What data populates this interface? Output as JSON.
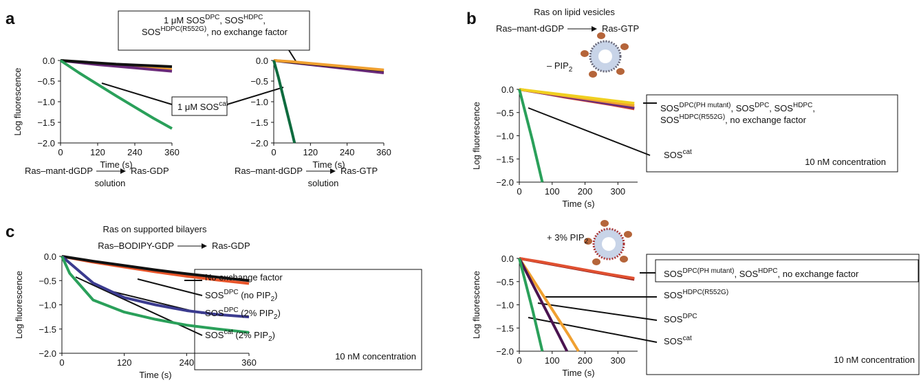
{
  "chart_data": [
    {
      "type": "line",
      "panel": "a",
      "xlabel": "Time (s)",
      "ylabel": "Log fluorescence",
      "xlim": [
        0,
        360
      ],
      "xticks": [
        0,
        120,
        240,
        360
      ],
      "ylim": [
        -2,
        0
      ],
      "yticks": [
        {
          "value": 0,
          "label": "0.0"
        },
        {
          "value": -0.5,
          "label": "−0.5"
        },
        {
          "value": -1,
          "label": "−1.0"
        },
        {
          "value": -1.5,
          "label": "−1.5"
        },
        {
          "value": -2,
          "label": "−2.0"
        }
      ],
      "reaction": {
        "from": "Ras–mant-dGDP",
        "to": "Ras-GDP",
        "medium": "solution"
      },
      "annotations": [
        [
          [
            {
              "t": "1 μM SOS"
            },
            {
              "sup": "DPC"
            },
            {
              "t": ", SOS"
            },
            {
              "sup": "HDPC"
            },
            {
              "t": ","
            }
          ],
          [
            {
              "t": "SOS"
            },
            {
              "sup": "HDPC(R552G)"
            },
            {
              "t": ", no exchange factor"
            }
          ]
        ],
        [
          [
            {
              "t": "1 μM SOS"
            },
            {
              "sup": "cat"
            }
          ]
        ]
      ],
      "series": [
        {
          "color": "#f0a030",
          "x": [
            0,
            60,
            120,
            180,
            240,
            300,
            360
          ],
          "values": [
            0,
            -0.04,
            -0.08,
            -0.12,
            -0.16,
            -0.19,
            -0.22
          ]
        },
        {
          "color": "#6a2a7a",
          "x": [
            0,
            60,
            120,
            180,
            240,
            300,
            360
          ],
          "values": [
            0,
            -0.05,
            -0.1,
            -0.14,
            -0.18,
            -0.22,
            -0.26
          ]
        },
        {
          "color": "#111111",
          "x": [
            0,
            60,
            120,
            180,
            240,
            300,
            360
          ],
          "values": [
            0,
            -0.03,
            -0.06,
            -0.09,
            -0.11,
            -0.13,
            -0.15
          ]
        },
        {
          "color": "#2aa05a",
          "x": [
            0,
            60,
            120,
            180,
            240,
            300,
            360
          ],
          "values": [
            0,
            -0.3,
            -0.58,
            -0.86,
            -1.13,
            -1.4,
            -1.65
          ]
        }
      ]
    },
    {
      "type": "line",
      "xlabel": "Time (s)",
      "xlim": [
        0,
        360
      ],
      "xticks": [
        0,
        120,
        240,
        360
      ],
      "ylim": [
        -2,
        0
      ],
      "yticks": [
        {
          "value": 0,
          "label": "0.0"
        },
        {
          "value": -0.5,
          "label": "−0.5"
        },
        {
          "value": -1,
          "label": "−1.0"
        },
        {
          "value": -1.5,
          "label": "−1.5"
        },
        {
          "value": -2,
          "label": "−2.0"
        }
      ],
      "reaction": {
        "from": "Ras–mant-dGDP",
        "to": "Ras-GTP",
        "medium": "solution"
      },
      "series": [
        {
          "color": "#6a2a7a",
          "x": [
            0,
            60,
            120,
            180,
            240,
            300,
            360
          ],
          "values": [
            0,
            -0.05,
            -0.1,
            -0.15,
            -0.2,
            -0.25,
            -0.3
          ]
        },
        {
          "color": "#111111",
          "x": [
            0,
            60,
            120,
            180,
            240,
            300,
            360
          ],
          "values": [
            0,
            -0.04,
            -0.08,
            -0.12,
            -0.16,
            -0.2,
            -0.24
          ]
        },
        {
          "color": "#f0a030",
          "x": [
            0,
            60,
            120,
            180,
            240,
            300,
            360
          ],
          "values": [
            0,
            -0.03,
            -0.07,
            -0.11,
            -0.15,
            -0.19,
            -0.23
          ]
        },
        {
          "color": "#0f6b3e",
          "x": [
            0,
            15,
            30,
            45,
            60,
            68
          ],
          "values": [
            0,
            -0.4,
            -0.85,
            -1.3,
            -1.75,
            -2
          ]
        }
      ]
    },
    {
      "type": "line",
      "panel": "b",
      "title": "Ras on lipid vesicles",
      "xlabel": "Time (s)",
      "ylabel": "Log fluorescence",
      "xlim": [
        0,
        360
      ],
      "xticks": [
        0,
        100,
        200,
        300
      ],
      "ylim": [
        -2,
        0
      ],
      "yticks": [
        {
          "value": 0,
          "label": "0.0"
        },
        {
          "value": -0.5,
          "label": "−0.5"
        },
        {
          "value": -1,
          "label": "−1.0"
        },
        {
          "value": -1.5,
          "label": "−1.5"
        },
        {
          "value": -2,
          "label": "−2.0"
        }
      ],
      "reaction": {
        "from": "Ras–mant-dGDP",
        "to": "Ras-GTP"
      },
      "annotations": [
        [
          [
            {
              "t": "SOS"
            },
            {
              "sup": "DPC(PH mutant)"
            },
            {
              "t": ", SOS"
            },
            {
              "sup": "DPC"
            },
            {
              "t": ", SOS"
            },
            {
              "sup": "HDPC"
            },
            {
              "t": ","
            }
          ],
          [
            {
              "t": "SOS"
            },
            {
              "sup": "HDPC(R552G)"
            },
            {
              "t": ", no exchange factor"
            }
          ]
        ],
        [
          [
            {
              "t": "SOS"
            },
            {
              "sup": "cat"
            }
          ]
        ],
        [
          [
            {
              "t": "10 nM concentration"
            }
          ]
        ],
        [
          [
            {
              "t": "– PIP"
            },
            {
              "sub": "2"
            }
          ]
        ]
      ],
      "series": [
        {
          "color": "#e05030",
          "x": [
            0,
            70,
            140,
            210,
            280,
            350
          ],
          "values": [
            0,
            -0.08,
            -0.17,
            -0.25,
            -0.33,
            -0.42
          ]
        },
        {
          "color": "#6a2a7a",
          "x": [
            0,
            70,
            140,
            210,
            280,
            350
          ],
          "values": [
            0,
            -0.08,
            -0.16,
            -0.24,
            -0.32,
            -0.4
          ]
        },
        {
          "color": "#f0a030",
          "x": [
            0,
            70,
            140,
            210,
            280,
            350
          ],
          "values": [
            0,
            -0.07,
            -0.14,
            -0.21,
            -0.28,
            -0.35
          ]
        },
        {
          "color": "#f0d020",
          "x": [
            0,
            70,
            140,
            210,
            280,
            350
          ],
          "values": [
            0,
            -0.06,
            -0.12,
            -0.18,
            -0.24,
            -0.3
          ]
        },
        {
          "color": "#2aa05a",
          "x": [
            0,
            20,
            40,
            60,
            70
          ],
          "values": [
            0,
            -0.55,
            -1.1,
            -1.7,
            -2
          ]
        }
      ]
    },
    {
      "type": "line",
      "xlabel": "Time (s)",
      "ylabel": "Log fluorescence",
      "xlim": [
        0,
        360
      ],
      "xticks": [
        0,
        100,
        200,
        300
      ],
      "ylim": [
        -2,
        0
      ],
      "yticks": [
        {
          "value": 0,
          "label": "0.0"
        },
        {
          "value": -0.5,
          "label": "−0.5"
        },
        {
          "value": -1,
          "label": "−1.0"
        },
        {
          "value": -1.5,
          "label": "−1.5"
        },
        {
          "value": -2,
          "label": "−2.0"
        }
      ],
      "annotations": [
        [
          [
            {
              "t": "SOS"
            },
            {
              "sup": "DPC(PH mutant)"
            },
            {
              "t": ", SOS"
            },
            {
              "sup": "HDPC"
            },
            {
              "t": ", no exchange factor"
            }
          ]
        ],
        [
          [
            {
              "t": "SOS"
            },
            {
              "sup": "HDPC(R552G)"
            }
          ]
        ],
        [
          [
            {
              "t": "SOS"
            },
            {
              "sup": "DPC"
            }
          ]
        ],
        [
          [
            {
              "t": "SOS"
            },
            {
              "sup": "cat"
            }
          ]
        ],
        [
          [
            {
              "t": "10 nM concentration"
            }
          ]
        ],
        [
          [
            {
              "t": "+ 3% PIP"
            },
            {
              "sub": "2"
            }
          ]
        ]
      ],
      "series": [
        {
          "color": "#8b1a1a",
          "x": [
            0,
            70,
            140,
            210,
            280,
            350
          ],
          "values": [
            0,
            -0.09,
            -0.18,
            -0.27,
            -0.36,
            -0.45
          ]
        },
        {
          "color": "#e05030",
          "x": [
            0,
            70,
            140,
            210,
            280,
            350
          ],
          "values": [
            0,
            -0.08,
            -0.17,
            -0.26,
            -0.35,
            -0.43
          ]
        },
        {
          "color": "#f0a030",
          "x": [
            0,
            50,
            100,
            150,
            180
          ],
          "values": [
            0,
            -0.55,
            -1.1,
            -1.65,
            -2
          ]
        },
        {
          "color": "#4a1450",
          "x": [
            0,
            40,
            80,
            120,
            145
          ],
          "values": [
            0,
            -0.55,
            -1.1,
            -1.65,
            -2
          ]
        },
        {
          "color": "#2aa05a",
          "x": [
            0,
            20,
            40,
            60,
            70
          ],
          "values": [
            0,
            -0.55,
            -1.1,
            -1.7,
            -2
          ]
        }
      ]
    },
    {
      "type": "line",
      "panel": "c",
      "title": "Ras on supported bilayers",
      "xlabel": "Time (s)",
      "ylabel": "Log fluorescence",
      "xlim": [
        0,
        360
      ],
      "xticks": [
        0,
        120,
        240,
        360
      ],
      "ylim": [
        -2,
        0
      ],
      "yticks": [
        {
          "value": 0,
          "label": "0.0"
        },
        {
          "value": -0.5,
          "label": "−0.5"
        },
        {
          "value": -1,
          "label": "−1.0"
        },
        {
          "value": -1.5,
          "label": "−1.5"
        },
        {
          "value": -2,
          "label": "−2.0"
        }
      ],
      "reaction": {
        "from": "Ras–BODIPY-GDP",
        "to": "Ras-GDP"
      },
      "annotations": [
        [
          [
            {
              "t": "No exchange factor"
            }
          ]
        ],
        [
          [
            {
              "t": "SOS"
            },
            {
              "sup": "DPC"
            },
            {
              "t": " (no PIP"
            },
            {
              "sub": "2"
            },
            {
              "t": ")"
            }
          ]
        ],
        [
          [
            {
              "t": "SOS"
            },
            {
              "sup": "DPC"
            },
            {
              "t": " (2% PIP"
            },
            {
              "sub": "2"
            },
            {
              "t": ")"
            }
          ]
        ],
        [
          [
            {
              "t": "SOS"
            },
            {
              "sup": "cat"
            },
            {
              "t": " (2% PIP"
            },
            {
              "sub": "2"
            },
            {
              "t": ")"
            }
          ]
        ],
        [
          [
            {
              "t": "10 nM concentration"
            }
          ]
        ]
      ],
      "series": [
        {
          "color": "#e8552a",
          "x": [
            0,
            60,
            120,
            180,
            240,
            300,
            360
          ],
          "values": [
            0,
            -0.12,
            -0.22,
            -0.32,
            -0.41,
            -0.49,
            -0.56
          ]
        },
        {
          "color": "#111111",
          "x": [
            0,
            60,
            120,
            180,
            240,
            300,
            360
          ],
          "values": [
            0,
            -0.1,
            -0.19,
            -0.28,
            -0.36,
            -0.43,
            -0.5
          ]
        },
        {
          "color": "#3b3b8f",
          "x": [
            0,
            60,
            120,
            180,
            240,
            300,
            360
          ],
          "values": [
            0,
            -0.55,
            -0.85,
            -1.0,
            -1.12,
            -1.2,
            -1.25
          ]
        },
        {
          "color": "#2aa05a",
          "x": [
            0,
            15,
            60,
            120,
            180,
            240,
            300,
            360
          ],
          "values": [
            0,
            -0.35,
            -0.9,
            -1.15,
            -1.3,
            -1.42,
            -1.5,
            -1.57
          ]
        }
      ]
    }
  ]
}
